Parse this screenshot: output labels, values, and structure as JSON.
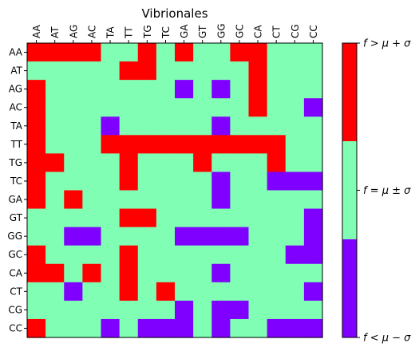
{
  "chart_data": {
    "type": "heatmap",
    "title": "Vibrionales",
    "x_labels": [
      "AA",
      "AT",
      "AG",
      "AC",
      "TA",
      "TT",
      "TG",
      "TC",
      "GA",
      "GT",
      "GG",
      "GC",
      "CA",
      "CT",
      "CG",
      "CC"
    ],
    "y_labels": [
      "AA",
      "AT",
      "AG",
      "AC",
      "TA",
      "TT",
      "TG",
      "TC",
      "GA",
      "GT",
      "GG",
      "GC",
      "CA",
      "CT",
      "CG",
      "CC"
    ],
    "value_levels": [
      -1,
      0,
      1
    ],
    "colormap": {
      "-1": "#7f00ff",
      "0": "#80ffb4",
      "1": "#ff0000"
    },
    "colorbar": {
      "ticks": [
        {
          "value": 1,
          "label": "f > μ + σ"
        },
        {
          "value": 0,
          "label": "f = μ ± σ"
        },
        {
          "value": -1,
          "label": "f < μ − σ"
        }
      ]
    },
    "matrix": [
      [
        1,
        1,
        1,
        1,
        0,
        0,
        1,
        0,
        1,
        0,
        0,
        1,
        1,
        0,
        0,
        0
      ],
      [
        0,
        0,
        0,
        0,
        0,
        1,
        1,
        0,
        0,
        0,
        0,
        0,
        1,
        0,
        0,
        0
      ],
      [
        1,
        0,
        0,
        0,
        0,
        0,
        0,
        0,
        -1,
        0,
        -1,
        0,
        1,
        0,
        0,
        0
      ],
      [
        1,
        0,
        0,
        0,
        0,
        0,
        0,
        0,
        0,
        0,
        0,
        0,
        1,
        0,
        0,
        -1
      ],
      [
        1,
        0,
        0,
        0,
        -1,
        0,
        0,
        0,
        0,
        0,
        -1,
        0,
        0,
        0,
        0,
        0
      ],
      [
        1,
        0,
        0,
        0,
        1,
        1,
        1,
        1,
        1,
        1,
        1,
        1,
        1,
        1,
        0,
        0
      ],
      [
        1,
        1,
        0,
        0,
        0,
        1,
        0,
        0,
        0,
        1,
        0,
        0,
        0,
        1,
        0,
        0
      ],
      [
        1,
        0,
        0,
        0,
        0,
        1,
        0,
        0,
        0,
        0,
        -1,
        0,
        0,
        -1,
        -1,
        -1
      ],
      [
        1,
        0,
        1,
        0,
        0,
        0,
        0,
        0,
        0,
        0,
        -1,
        0,
        0,
        0,
        0,
        0
      ],
      [
        0,
        0,
        0,
        0,
        0,
        1,
        1,
        0,
        0,
        0,
        0,
        0,
        0,
        0,
        0,
        -1
      ],
      [
        0,
        0,
        -1,
        -1,
        0,
        0,
        0,
        0,
        -1,
        -1,
        -1,
        -1,
        0,
        0,
        0,
        -1
      ],
      [
        1,
        0,
        0,
        0,
        0,
        1,
        0,
        0,
        0,
        0,
        0,
        0,
        0,
        0,
        -1,
        -1
      ],
      [
        1,
        1,
        0,
        1,
        0,
        1,
        0,
        0,
        0,
        0,
        -1,
        0,
        0,
        0,
        0,
        0
      ],
      [
        0,
        0,
        -1,
        0,
        0,
        1,
        0,
        1,
        0,
        0,
        0,
        0,
        0,
        0,
        0,
        -1
      ],
      [
        0,
        0,
        0,
        0,
        0,
        0,
        0,
        0,
        -1,
        0,
        -1,
        -1,
        0,
        0,
        0,
        0
      ],
      [
        1,
        0,
        0,
        0,
        -1,
        0,
        -1,
        -1,
        -1,
        0,
        -1,
        0,
        0,
        -1,
        -1,
        -1
      ]
    ]
  }
}
